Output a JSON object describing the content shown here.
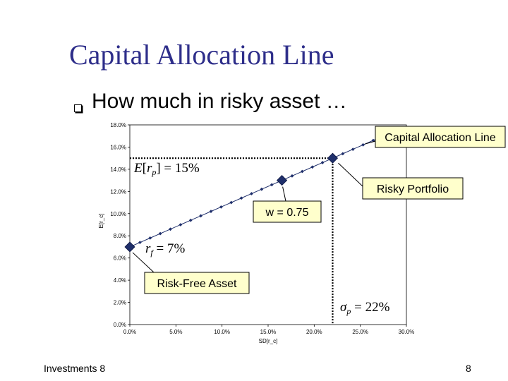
{
  "slide": {
    "title": "Capital Allocation Line",
    "bullet": "How much in risky asset …",
    "footer_left": "Investments 8",
    "page_number": "8"
  },
  "chart_data": {
    "type": "line",
    "xlabel": "SD[r_c]",
    "ylabel": "E[r_c]",
    "xlim": [
      0,
      0.3
    ],
    "ylim": [
      0,
      0.18
    ],
    "x_ticks": [
      0,
      0.05,
      0.1,
      0.15,
      0.2,
      0.25,
      0.3
    ],
    "x_tick_labels": [
      "0.0%",
      "5.0%",
      "10.0%",
      "15.0%",
      "20.0%",
      "25.0%",
      "30.0%"
    ],
    "y_ticks": [
      0,
      0.02,
      0.04,
      0.06,
      0.08,
      0.1,
      0.12,
      0.14,
      0.16,
      0.18
    ],
    "y_tick_labels": [
      "0.0%",
      "2.0%",
      "4.0%",
      "6.0%",
      "8.0%",
      "10.0%",
      "12.0%",
      "14.0%",
      "16.0%",
      "18.0%"
    ],
    "series": [
      {
        "x": [
          0,
          0.011,
          0.022,
          0.033,
          0.044,
          0.055,
          0.066,
          0.077,
          0.088,
          0.099,
          0.11,
          0.121,
          0.132,
          0.143,
          0.154,
          0.165,
          0.176,
          0.187,
          0.198,
          0.209,
          0.22,
          0.231,
          0.242,
          0.253,
          0.264,
          0.275
        ],
        "y": [
          0.07,
          0.074,
          0.078,
          0.082,
          0.086,
          0.09,
          0.094,
          0.098,
          0.102,
          0.106,
          0.11,
          0.114,
          0.118,
          0.122,
          0.126,
          0.13,
          0.134,
          0.138,
          0.142,
          0.146,
          0.15,
          0.154,
          0.158,
          0.162,
          0.166,
          0.17
        ],
        "color": "#1f2f6b"
      }
    ],
    "highlighted_points": [
      {
        "x": 0,
        "y": 0.07
      },
      {
        "x": 0.165,
        "y": 0.13
      },
      {
        "x": 0.22,
        "y": 0.15
      }
    ],
    "callouts": {
      "cal": "Capital Allocation Line",
      "risky_portfolio": "Risky Portfolio",
      "w": "w = 0.75",
      "risk_free": "Risk-Free Asset"
    },
    "annotations": {
      "expected_return": "E[r_p] = 15%",
      "risk_free_rate": "r_f = 7%",
      "sigma": "σ_p = 22%"
    },
    "callout_fill": "#ffffcc",
    "marker_color": "#1f2f6b"
  }
}
